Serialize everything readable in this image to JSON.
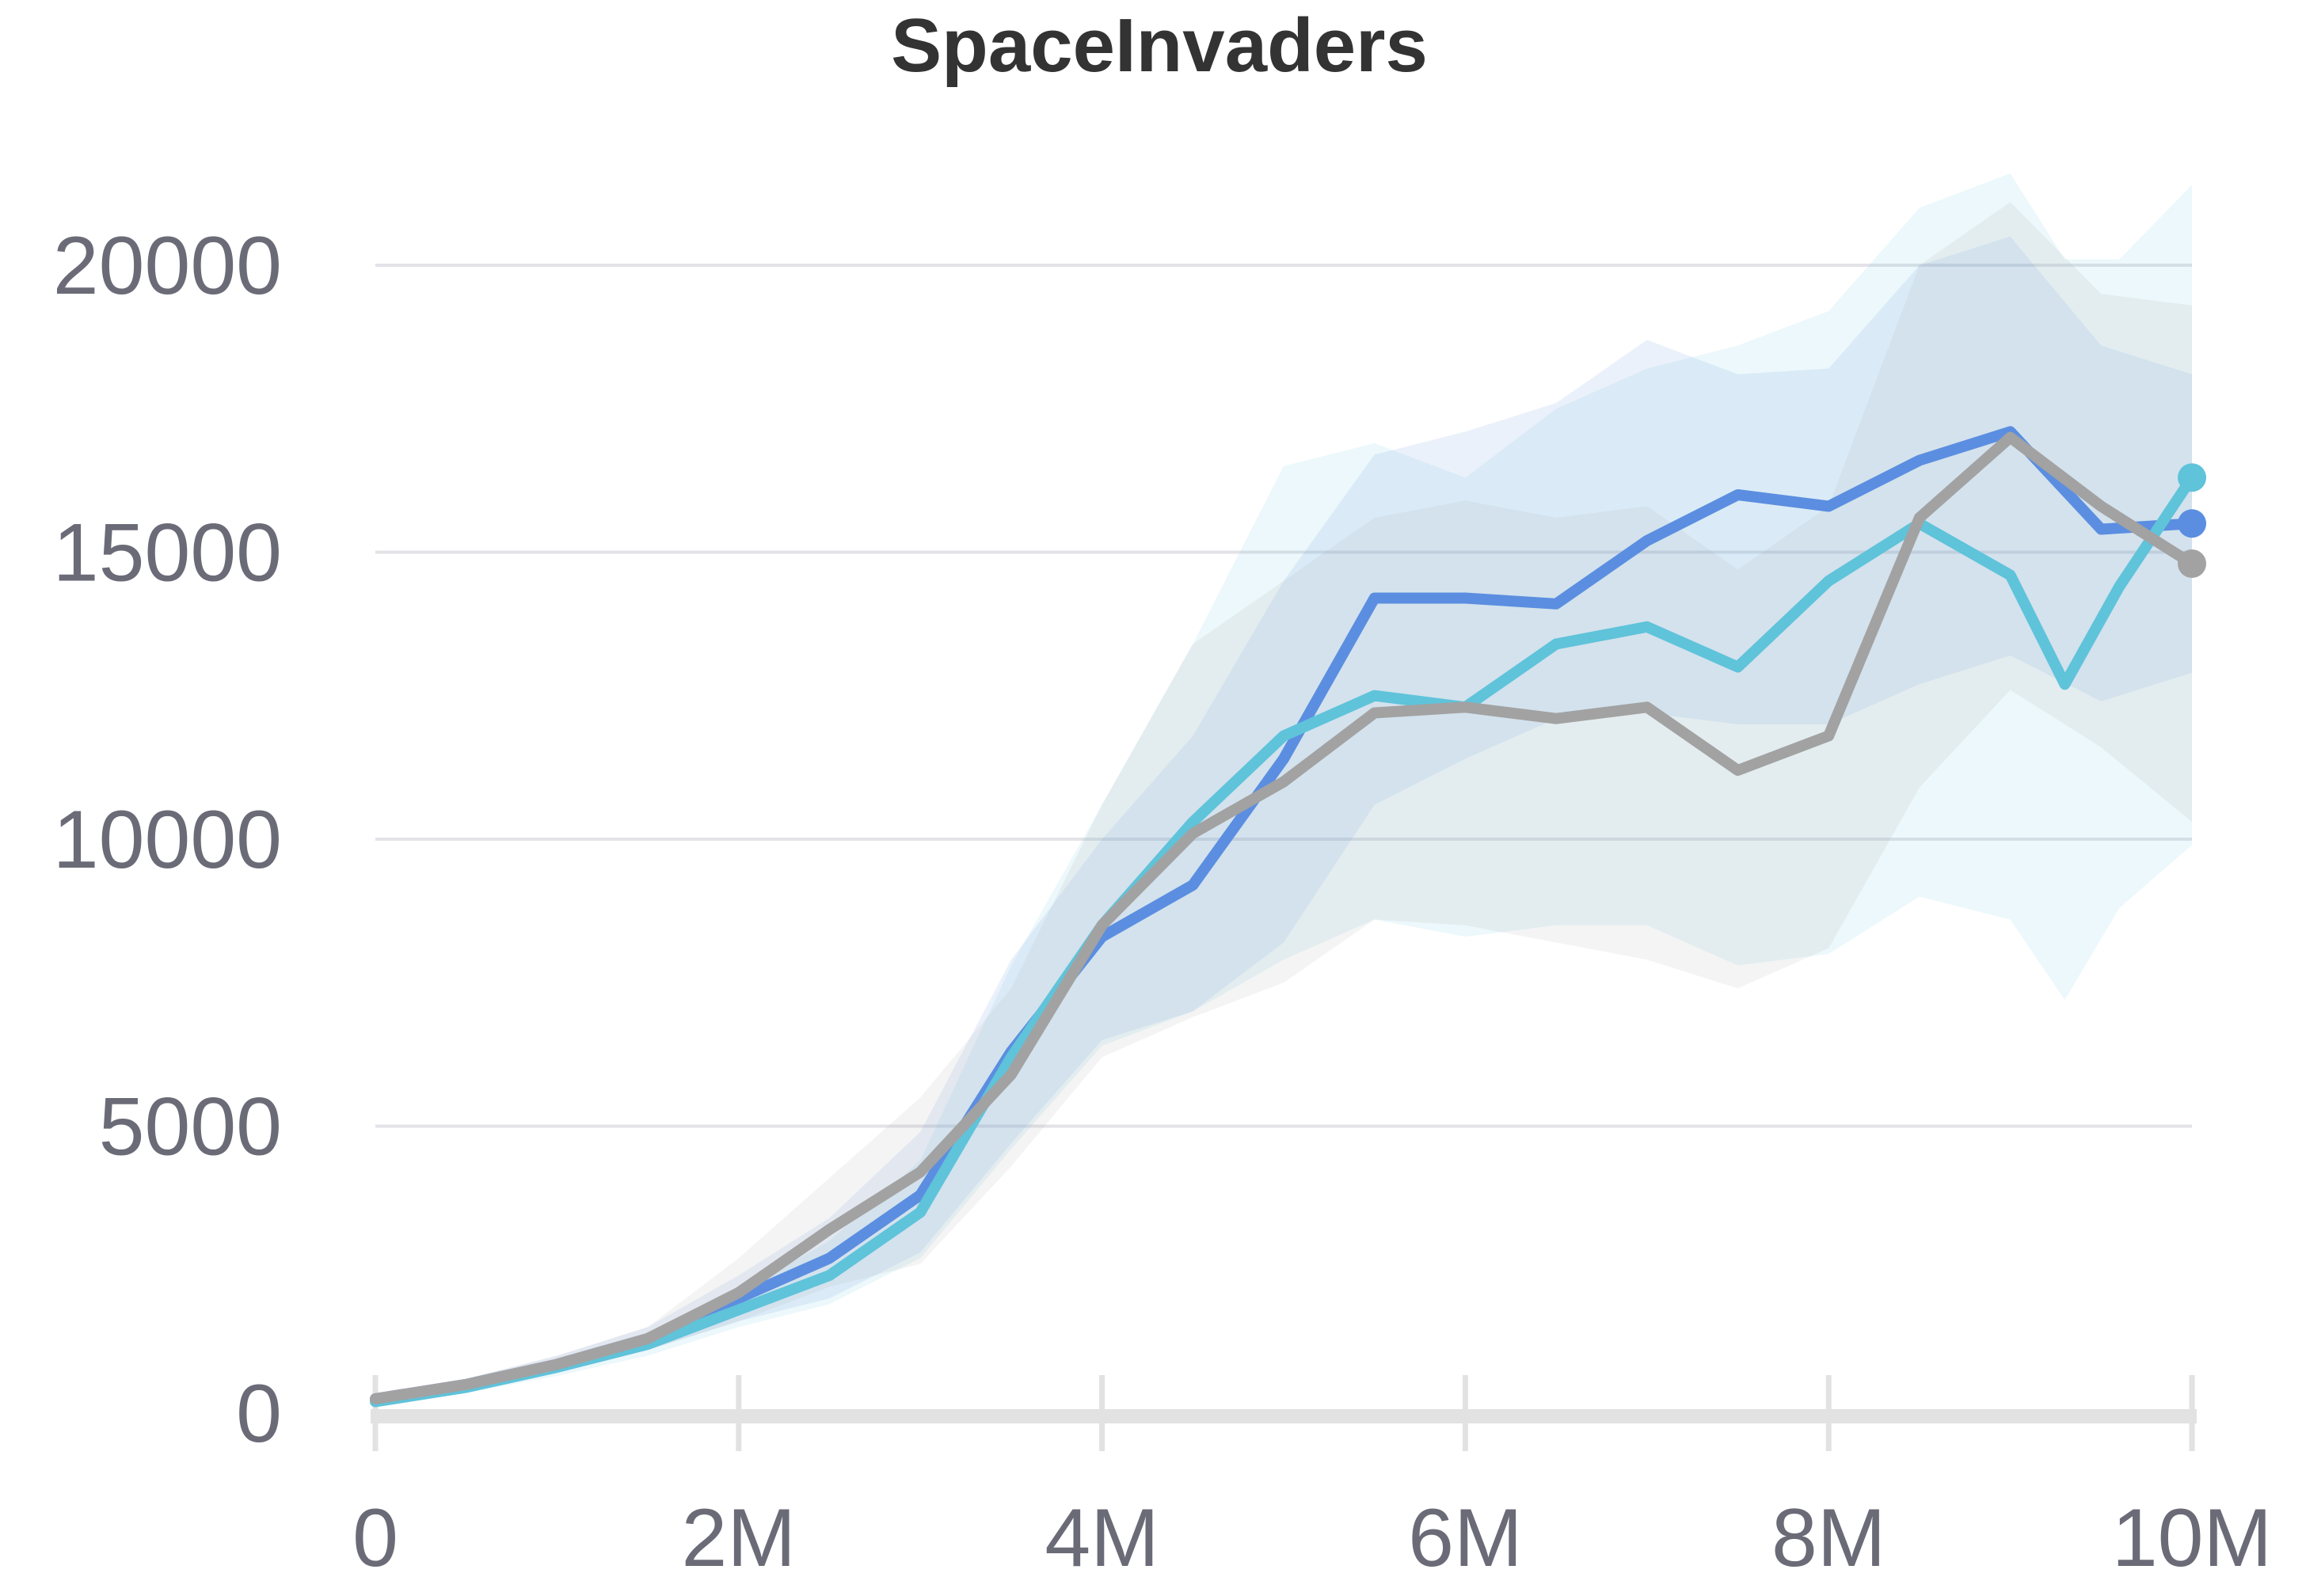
{
  "chart_data": {
    "type": "line",
    "title": "SpaceInvaders",
    "xlabel": "",
    "ylabel": "",
    "xlim": [
      0,
      10000000
    ],
    "ylim": [
      0,
      22000
    ],
    "grid": "horizontal",
    "legend": "none",
    "x_ticks": [
      {
        "value": 0,
        "label": "0"
      },
      {
        "value": 2000000,
        "label": "2M"
      },
      {
        "value": 4000000,
        "label": "4M"
      },
      {
        "value": 6000000,
        "label": "6M"
      },
      {
        "value": 8000000,
        "label": "8M"
      },
      {
        "value": 10000000,
        "label": "10M"
      }
    ],
    "y_ticks": [
      {
        "value": 0,
        "label": "0"
      },
      {
        "value": 5000,
        "label": "5000"
      },
      {
        "value": 10000,
        "label": "10000"
      },
      {
        "value": 15000,
        "label": "15000"
      },
      {
        "value": 20000,
        "label": "20000"
      }
    ],
    "series": [
      {
        "color": "#5b8ee0",
        "x": [
          0,
          500000,
          1000000,
          1500000,
          2000000,
          2500000,
          3000000,
          3500000,
          4000000,
          4500000,
          5000000,
          5500000,
          6000000,
          6500000,
          7000000,
          7500000,
          8000000,
          8500000,
          9000000,
          9500000,
          10000000
        ],
        "y": [
          250,
          500,
          850,
          1300,
          2000,
          2700,
          3800,
          6300,
          8300,
          9200,
          11400,
          14200,
          14200,
          14100,
          15200,
          16000,
          15800,
          16600,
          17100,
          15400,
          15500
        ],
        "lower": [
          200,
          400,
          700,
          1100,
          1600,
          2000,
          2800,
          4700,
          6500,
          7000,
          8200,
          10600,
          11400,
          12100,
          12200,
          12000,
          12000,
          12700,
          13200,
          12400,
          12900
        ],
        "upper": [
          300,
          600,
          1000,
          1500,
          2400,
          3400,
          4900,
          7900,
          10000,
          11800,
          14500,
          16700,
          17100,
          17600,
          18700,
          18100,
          18200,
          20000,
          20500,
          18600,
          18100
        ]
      },
      {
        "color": "#5fc3da",
        "x": [
          0,
          500000,
          1000000,
          1500000,
          2000000,
          2500000,
          3000000,
          3500000,
          4000000,
          4500000,
          5000000,
          5500000,
          6000000,
          6500000,
          7000000,
          7500000,
          8000000,
          8500000,
          9000000,
          9300000,
          9600000,
          10000000
        ],
        "y": [
          200,
          450,
          800,
          1200,
          1800,
          2400,
          3500,
          6200,
          8500,
          10300,
          11800,
          12500,
          12300,
          13400,
          13700,
          13000,
          14500,
          15500,
          14600,
          12700,
          14400,
          16300
        ],
        "lower": [
          150,
          350,
          650,
          1000,
          1500,
          1900,
          2700,
          4600,
          6400,
          7000,
          7900,
          8600,
          8300,
          8500,
          8500,
          7800,
          8000,
          9000,
          8600,
          7200,
          8800,
          9900
        ],
        "upper": [
          250,
          550,
          950,
          1400,
          2100,
          3000,
          4400,
          7800,
          10600,
          13400,
          16500,
          16900,
          16300,
          17500,
          18200,
          18600,
          19200,
          21000,
          21600,
          20100,
          20100,
          21400
        ]
      },
      {
        "color": "#a2a2a2",
        "x": [
          0,
          500000,
          1000000,
          1500000,
          2000000,
          2500000,
          3000000,
          3500000,
          4000000,
          4500000,
          5000000,
          5500000,
          6000000,
          6500000,
          7000000,
          7500000,
          8000000,
          8500000,
          9000000,
          9500000,
          10000000
        ],
        "y": [
          250,
          500,
          850,
          1300,
          2100,
          3200,
          4200,
          5900,
          8500,
          10100,
          11000,
          12200,
          12300,
          12100,
          12300,
          11200,
          11800,
          15600,
          17000,
          15800,
          14800
        ],
        "lower": [
          200,
          400,
          700,
          1100,
          1600,
          2200,
          2600,
          4300,
          6200,
          6900,
          7500,
          8600,
          8500,
          8200,
          7900,
          7400,
          8100,
          10900,
          12600,
          11600,
          10300
        ],
        "upper": [
          300,
          600,
          1000,
          1500,
          2700,
          4100,
          5500,
          7400,
          10600,
          13400,
          14500,
          15600,
          15900,
          15600,
          15800,
          14700,
          15800,
          20000,
          21100,
          19500,
          19300
        ]
      }
    ]
  }
}
